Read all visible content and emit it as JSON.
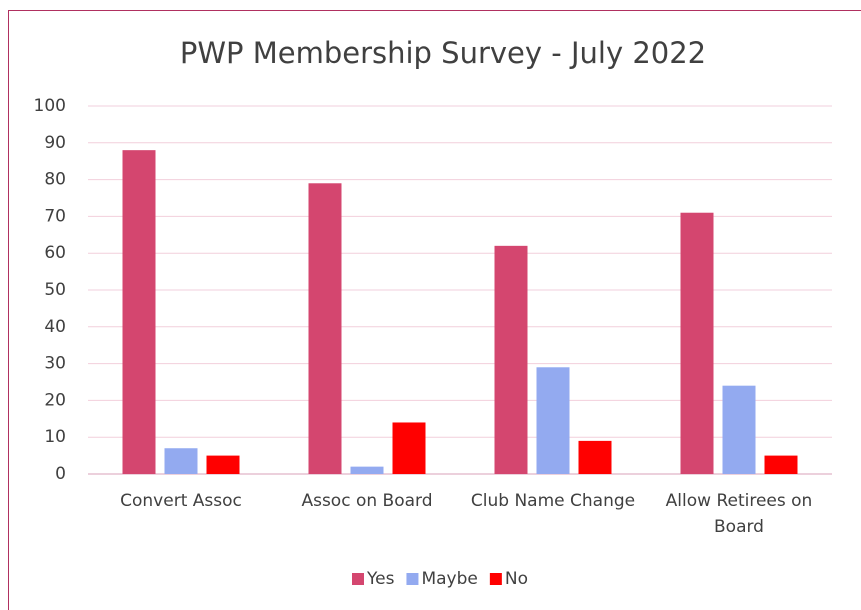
{
  "chart_data": {
    "type": "bar",
    "title": "PWP Membership Survey - July 2022",
    "categories": [
      "Convert Assoc",
      "Assoc on Board",
      "Club Name Change",
      "Allow Retirees on Board"
    ],
    "series": [
      {
        "name": "Yes",
        "color": "#d4466f",
        "values": [
          88,
          79,
          62,
          71
        ]
      },
      {
        "name": "Maybe",
        "color": "#93aaf0",
        "values": [
          7,
          2,
          29,
          24
        ]
      },
      {
        "name": "No",
        "color": "#ff0000",
        "values": [
          5,
          14,
          9,
          5
        ]
      }
    ],
    "ylim": [
      0,
      100
    ],
    "yticks": [
      0,
      10,
      20,
      30,
      40,
      50,
      60,
      70,
      80,
      90,
      100
    ],
    "grid": true,
    "legend": "bottom"
  }
}
